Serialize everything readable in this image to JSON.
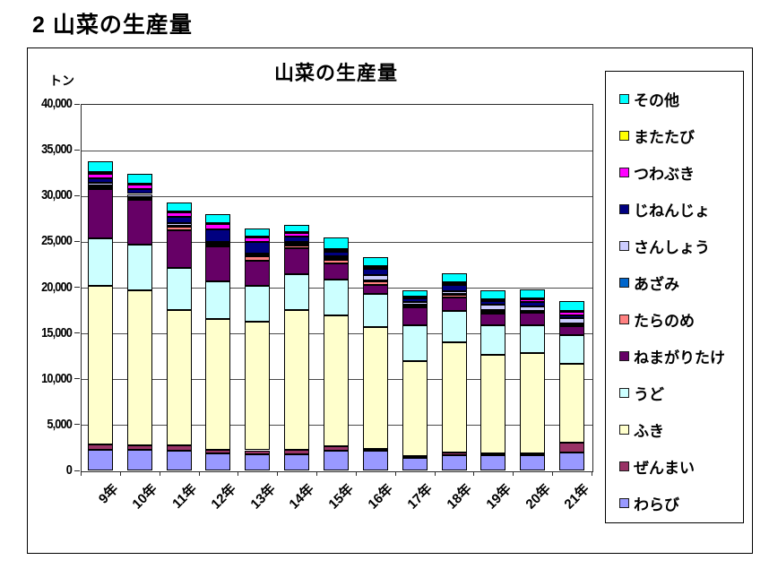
{
  "page": {
    "header": "2 山菜の生産量"
  },
  "chart_data": {
    "type": "bar",
    "stacked": true,
    "title": "山菜の生産量",
    "unit_label": "トン",
    "categories": [
      "9年",
      "10年",
      "11年",
      "12年",
      "13年",
      "14年",
      "15年",
      "16年",
      "17年",
      "18年",
      "19年",
      "20年",
      "21年"
    ],
    "ylim": [
      0,
      40000
    ],
    "ytick_interval": 5000,
    "ytick_labels": [
      "0",
      "5,000",
      "10,000",
      "15,000",
      "20,000",
      "25,000",
      "30,000",
      "35,000",
      "40,000"
    ],
    "grid": true,
    "legend_position": "right",
    "series": [
      {
        "name": "わらび",
        "color": "#9999FF",
        "values": [
          2280,
          2280,
          2120,
          1860,
          1800,
          1730,
          2120,
          2120,
          1340,
          1630,
          1660,
          1630,
          1950
        ]
      },
      {
        "name": "ぜんまい",
        "color": "#993366",
        "values": [
          550,
          490,
          590,
          420,
          400,
          550,
          490,
          200,
          200,
          320,
          200,
          250,
          1040
        ]
      },
      {
        "name": "ふき",
        "color": "#FFFFCC",
        "values": [
          17350,
          16880,
          14810,
          14260,
          14060,
          15270,
          14320,
          13350,
          10380,
          12050,
          10750,
          10910,
          8690
        ]
      },
      {
        "name": "うど",
        "color": "#CCFFFF",
        "values": [
          5150,
          4950,
          4560,
          4140,
          3900,
          3910,
          3910,
          3580,
          3900,
          3420,
          3250,
          3090,
          3090
        ]
      },
      {
        "name": "ねまがりたけ",
        "color": "#660066",
        "values": [
          5350,
          4890,
          4130,
          3740,
          2700,
          2830,
          1800,
          980,
          1960,
          1470,
          1210,
          1310,
          980
        ]
      },
      {
        "name": "たらのめ",
        "color": "#FF8080",
        "values": [
          250,
          250,
          390,
          210,
          490,
          290,
          390,
          390,
          200,
          250,
          200,
          100,
          230
        ]
      },
      {
        "name": "あざみ",
        "color": "#0066CC",
        "values": [
          150,
          100,
          100,
          100,
          100,
          150,
          100,
          100,
          150,
          100,
          250,
          100,
          100
        ]
      },
      {
        "name": "さんしょう",
        "color": "#CCCCFF",
        "values": [
          300,
          330,
          330,
          210,
          200,
          250,
          200,
          590,
          250,
          340,
          590,
          490,
          520
        ]
      },
      {
        "name": "じねんじょ",
        "color": "#000080",
        "values": [
          500,
          550,
          650,
          1340,
          1310,
          530,
          560,
          710,
          390,
          710,
          390,
          490,
          330
        ]
      },
      {
        "name": "つわぶき",
        "color": "#FF00FF",
        "values": [
          500,
          490,
          490,
          590,
          490,
          390,
          200,
          150,
          100,
          100,
          100,
          330,
          360
        ]
      },
      {
        "name": "またたび",
        "color": "#FFFF00",
        "values": [
          150,
          100,
          100,
          100,
          100,
          100,
          100,
          100,
          100,
          100,
          100,
          100,
          100
        ]
      },
      {
        "name": "その他",
        "color": "#00FFFF",
        "values": [
          1250,
          1070,
          980,
          980,
          820,
          840,
          1210,
          1040,
          680,
          980,
          980,
          980,
          1070
        ]
      }
    ]
  }
}
